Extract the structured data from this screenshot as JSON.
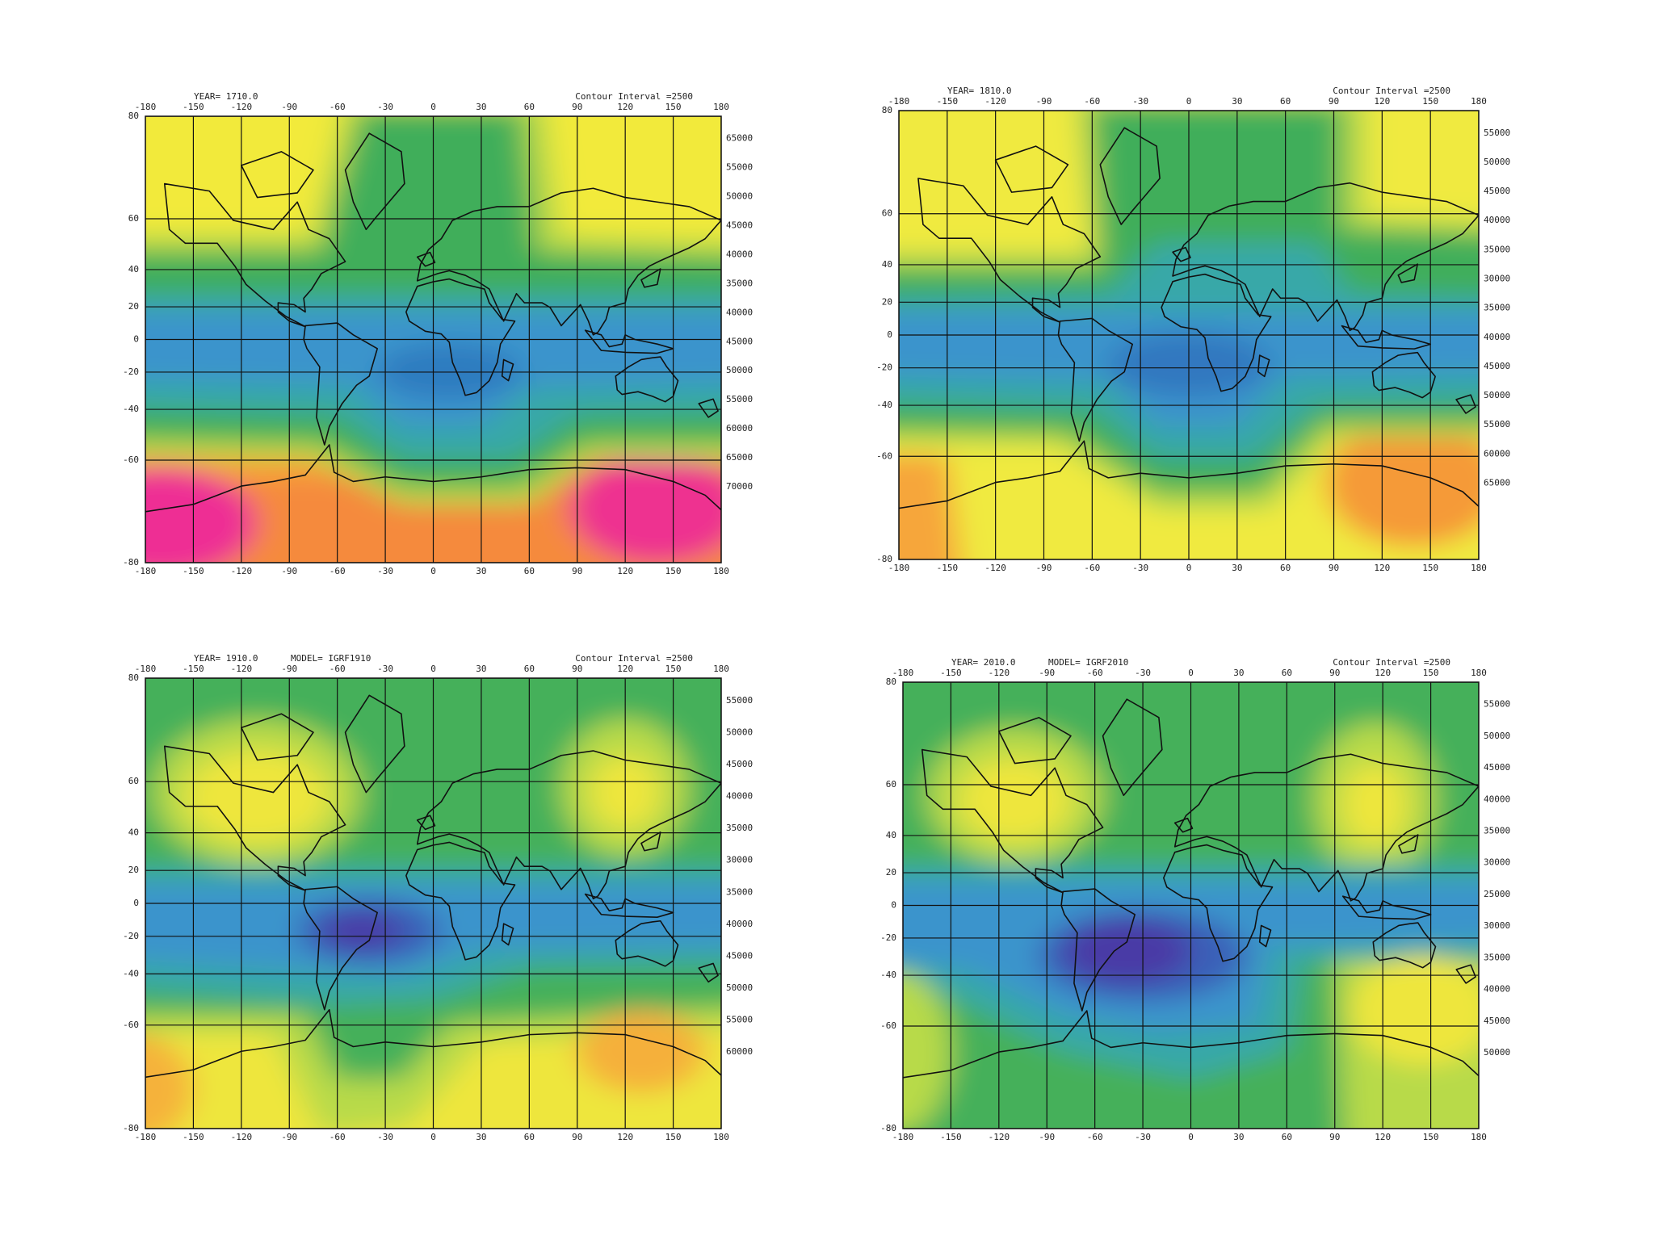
{
  "panels": [
    {
      "year": "YEAR= 1710.0",
      "interval": "Contour Interval =2500",
      "contour_labels": [
        "65000",
        "55000",
        "50000",
        "45000",
        "40000",
        "35000",
        "40000",
        "45000",
        "50000",
        "55000",
        "60000",
        "65000",
        "70000"
      ]
    },
    {
      "year": "YEAR= 1810.0",
      "interval": "Contour Interval =2500",
      "contour_labels": [
        "55000",
        "50000",
        "45000",
        "40000",
        "35000",
        "30000",
        "35000",
        "40000",
        "45000",
        "50000",
        "55000",
        "60000",
        "65000"
      ]
    },
    {
      "year": "YEAR= 1910.0",
      "model": "MODEL= IGRF1910",
      "interval": "Contour Interval =2500",
      "contour_labels": [
        "55000",
        "50000",
        "45000",
        "40000",
        "35000",
        "30000",
        "35000",
        "40000",
        "45000",
        "50000",
        "55000",
        "60000"
      ]
    },
    {
      "year": "YEAR= 2010.0",
      "model": "MODEL= IGRF2010",
      "interval": "Contour Interval =2500",
      "contour_labels": [
        "55000",
        "50000",
        "45000",
        "40000",
        "35000",
        "30000",
        "25000",
        "30000",
        "35000",
        "40000",
        "45000",
        "50000"
      ]
    }
  ],
  "lon_ticks": [
    -180,
    -150,
    -120,
    -90,
    -60,
    -30,
    0,
    30,
    60,
    90,
    120,
    150,
    180
  ],
  "lat_ticks": [
    80,
    60,
    40,
    20,
    0,
    -20,
    -40,
    -60,
    -80
  ]
}
